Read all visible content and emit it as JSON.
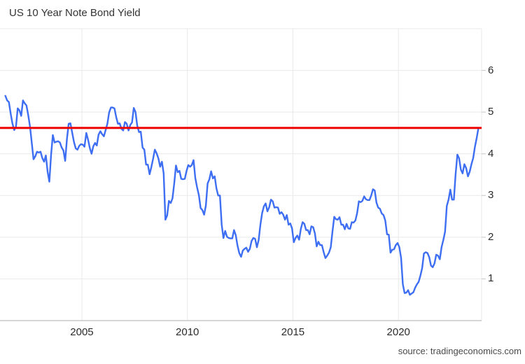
{
  "title": "US 10 Year Note Bond Yield",
  "source": "source: tradingeconomics.com",
  "chart_data": {
    "type": "line",
    "title": "US 10 Year Note Bond Yield",
    "xlabel": "",
    "ylabel": "",
    "grid": true,
    "legend_position": "none",
    "xlim": [
      2001.12,
      2023.94
    ],
    "ylim": [
      0,
      7
    ],
    "x_ticks": [
      2005,
      2010,
      2015,
      2020
    ],
    "y_ticks": [
      1,
      2,
      3,
      4,
      5,
      6
    ],
    "current_value": 4.62,
    "colors": {
      "line": "#3e6ef2",
      "current_line": "#ee0404",
      "grid": "#e9e9e9",
      "axis": "#c9c9c9",
      "tick": "#cfcfcf"
    },
    "series": [
      {
        "name": "US 10 Year Note Bond Yield",
        "interval": "monthly",
        "start": "2001-05",
        "values": [
          5.39,
          5.28,
          5.24,
          4.97,
          4.73,
          4.57,
          4.65,
          5.09,
          5.04,
          4.91,
          5.28,
          5.21,
          5.16,
          4.93,
          4.65,
          4.26,
          3.87,
          3.94,
          4.05,
          4.03,
          4.05,
          3.9,
          3.81,
          3.96,
          3.57,
          3.33,
          3.98,
          4.45,
          4.27,
          4.29,
          4.3,
          4.27,
          4.15,
          4.08,
          3.83,
          4.35,
          4.72,
          4.73,
          4.5,
          4.28,
          4.13,
          4.1,
          4.19,
          4.23,
          4.22,
          4.17,
          4.5,
          4.34,
          4.14,
          4.0,
          4.18,
          4.26,
          4.2,
          4.46,
          4.54,
          4.47,
          4.42,
          4.57,
          4.72,
          4.99,
          5.11,
          5.11,
          5.09,
          4.88,
          4.72,
          4.73,
          4.6,
          4.56,
          4.76,
          4.72,
          4.56,
          4.69,
          4.75,
          5.1,
          5.0,
          4.67,
          4.52,
          4.53,
          4.15,
          4.1,
          3.74,
          3.74,
          3.51,
          3.68,
          3.88,
          4.1,
          4.01,
          3.89,
          3.69,
          3.81,
          3.53,
          2.42,
          2.52,
          2.87,
          2.82,
          2.93,
          3.29,
          3.72,
          3.56,
          3.59,
          3.4,
          3.39,
          3.4,
          3.59,
          3.73,
          3.69,
          3.73,
          3.85,
          3.42,
          3.2,
          3.01,
          2.7,
          2.65,
          2.54,
          2.76,
          3.29,
          3.39,
          3.58,
          3.41,
          3.46,
          3.17,
          3.0,
          3.0,
          2.3,
          1.98,
          2.15,
          2.01,
          1.98,
          1.97,
          1.97,
          2.17,
          2.05,
          1.8,
          1.62,
          1.53,
          1.68,
          1.72,
          1.75,
          1.65,
          1.72,
          1.91,
          1.98,
          1.96,
          1.76,
          1.93,
          2.3,
          2.58,
          2.74,
          2.81,
          2.62,
          2.72,
          2.9,
          2.86,
          2.71,
          2.72,
          2.71,
          2.56,
          2.6,
          2.54,
          2.42,
          2.53,
          2.3,
          2.33,
          2.21,
          1.88,
          1.98,
          2.04,
          1.94,
          2.2,
          2.36,
          2.32,
          2.17,
          2.17,
          2.07,
          2.26,
          2.24,
          2.09,
          1.78,
          1.89,
          1.81,
          1.81,
          1.64,
          1.5,
          1.56,
          1.63,
          1.76,
          2.14,
          2.49,
          2.43,
          2.42,
          2.48,
          2.3,
          2.3,
          2.19,
          2.32,
          2.21,
          2.2,
          2.36,
          2.35,
          2.4,
          2.58,
          2.86,
          2.84,
          2.87,
          2.98,
          2.91,
          2.89,
          2.89,
          3.0,
          3.15,
          3.12,
          2.83,
          2.71,
          2.68,
          2.57,
          2.53,
          2.4,
          2.07,
          2.06,
          1.63,
          1.7,
          1.71,
          1.81,
          1.86,
          1.76,
          1.5,
          0.87,
          0.66,
          0.67,
          0.73,
          0.62,
          0.65,
          0.68,
          0.79,
          0.87,
          0.93,
          1.08,
          1.26,
          1.61,
          1.64,
          1.62,
          1.52,
          1.32,
          1.28,
          1.37,
          1.58,
          1.56,
          1.47,
          1.76,
          1.93,
          2.13,
          2.75,
          2.9,
          3.14,
          2.9,
          2.9,
          3.52,
          3.98,
          3.89,
          3.62,
          3.53,
          3.75,
          3.66,
          3.46,
          3.57,
          3.75,
          3.9,
          4.17,
          4.38,
          4.62
        ]
      }
    ]
  }
}
